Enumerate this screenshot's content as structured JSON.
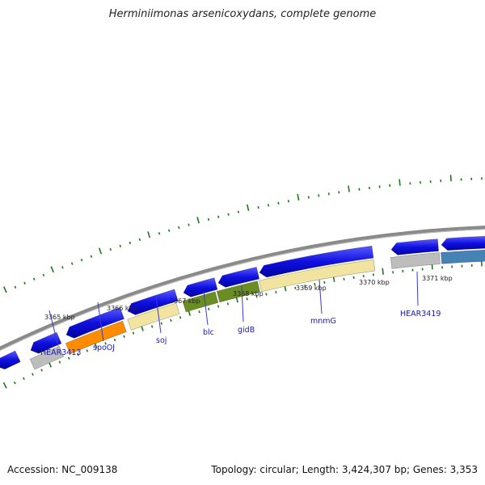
{
  "title": "Herminiimonas arsenicoxydans, complete genome",
  "footer": {
    "accession": "Accession: NC_009138",
    "summary": "Topology: circular; Length: 3,424,307 bp; Genes: 3,353"
  },
  "colors": {
    "backbone": "#8a8a8a",
    "forward_strand": "#1010e0",
    "tick": "#1a7a1a",
    "label_line": "#3a3ad0",
    "gray": "#bdbdbd",
    "orange": "#ff8c00",
    "khaki": "#f0e4a0",
    "olive": "#6b8e23",
    "steelblue": "#4682b4"
  },
  "kbp_labels": [
    "3365 kbp",
    "3366 kbp",
    "3367 kbp",
    "3368 kbp",
    "3369 kbp",
    "3370 kbp",
    "3371 kbp"
  ],
  "genes": [
    {
      "name": "HEAR3413",
      "strand": "reverse",
      "color": "gray"
    },
    {
      "name": "spoOJ",
      "strand": "reverse",
      "color": "orange"
    },
    {
      "name": "soj",
      "strand": "reverse",
      "color": "khaki"
    },
    {
      "name": "blc",
      "strand": "reverse",
      "color": "olive"
    },
    {
      "name": "gidB",
      "strand": "reverse",
      "color": "olive"
    },
    {
      "name": "mnmG",
      "strand": "reverse",
      "color": "khaki"
    },
    {
      "name": "HEAR3419",
      "strand": "reverse",
      "color": "gray"
    }
  ]
}
